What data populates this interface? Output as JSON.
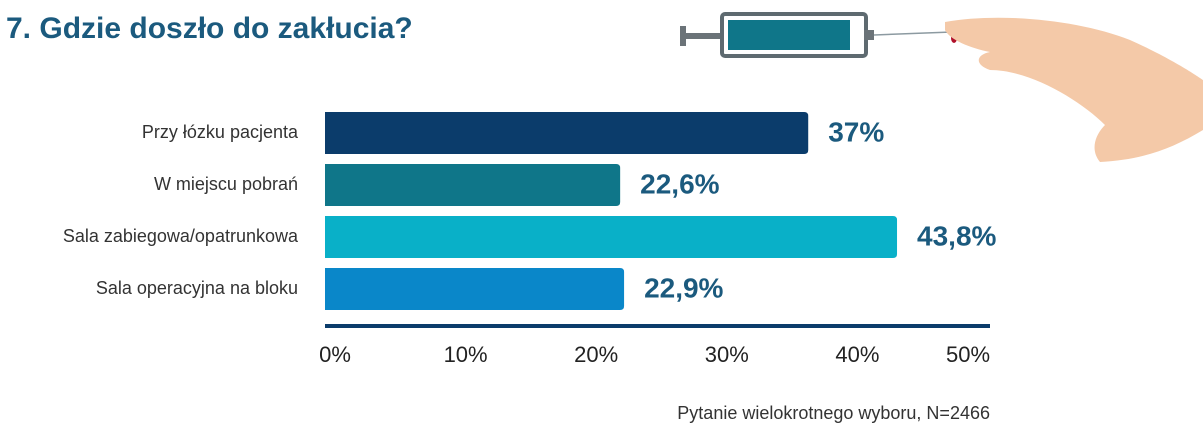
{
  "chart_data": {
    "type": "bar",
    "orientation": "horizontal",
    "title": "7. Gdzie doszło do zakłucia?",
    "note": "Pytanie wielokrotnego wyboru, N=2466",
    "categories": [
      "Przy łózku pacjenta",
      "W miejscu pobrań",
      "Sala zabiegowa/opatrunkowa",
      "Sala operacyjna na bloku"
    ],
    "values": [
      37,
      22.6,
      43.8,
      22.9
    ],
    "value_labels": [
      "37%",
      "22,6%",
      "43,8%",
      "22,9%"
    ],
    "colors": [
      "#0b3c6b",
      "#0f7689",
      "#09b0c8",
      "#0a87c9"
    ],
    "xlim": [
      0,
      50
    ],
    "xticks": [
      {
        "value": 0,
        "label": "0%"
      },
      {
        "value": 10,
        "label": "10%"
      },
      {
        "value": 20,
        "label": "20%"
      },
      {
        "value": 30,
        "label": "30%"
      },
      {
        "value": 40,
        "label": "40%"
      },
      {
        "value": 50,
        "label": "50%"
      }
    ]
  }
}
